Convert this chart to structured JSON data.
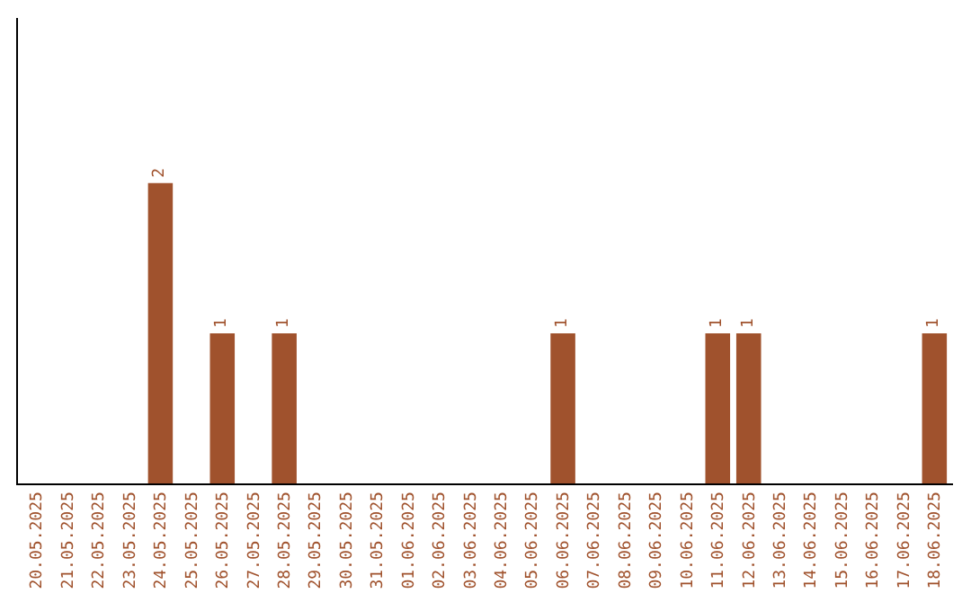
{
  "chart_data": {
    "type": "bar",
    "categories": [
      "20.05.2025",
      "21.05.2025",
      "22.05.2025",
      "23.05.2025",
      "24.05.2025",
      "25.05.2025",
      "26.05.2025",
      "27.05.2025",
      "28.05.2025",
      "29.05.2025",
      "30.05.2025",
      "31.05.2025",
      "01.06.2025",
      "02.06.2025",
      "03.06.2025",
      "04.06.2025",
      "05.06.2025",
      "06.06.2025",
      "07.06.2025",
      "08.06.2025",
      "09.06.2025",
      "10.06.2025",
      "11.06.2025",
      "12.06.2025",
      "13.06.2025",
      "14.06.2025",
      "15.06.2025",
      "16.06.2025",
      "17.06.2025",
      "18.06.2025"
    ],
    "values": [
      0,
      0,
      0,
      0,
      2,
      0,
      1,
      0,
      1,
      0,
      0,
      0,
      0,
      0,
      0,
      0,
      0,
      1,
      0,
      0,
      0,
      0,
      1,
      1,
      0,
      0,
      0,
      0,
      0,
      1
    ],
    "value_labels": [
      null,
      null,
      null,
      null,
      "2",
      null,
      "1",
      null,
      "1",
      null,
      null,
      null,
      null,
      null,
      null,
      null,
      null,
      "1",
      null,
      null,
      null,
      null,
      "1",
      "1",
      null,
      null,
      null,
      null,
      null,
      "1"
    ],
    "color": "#a0522d",
    "ylim": [
      0,
      3.1
    ]
  }
}
